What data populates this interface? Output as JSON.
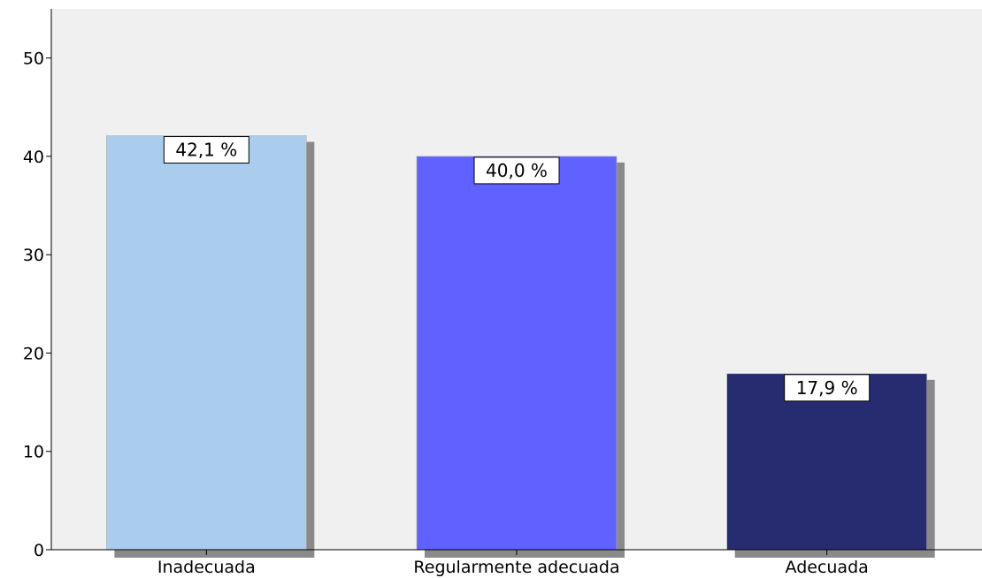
{
  "chart_data": {
    "type": "bar",
    "categories": [
      "Inadecuada",
      "Regularmente adecuada",
      "Adecuada"
    ],
    "values": [
      42.1,
      40.0,
      17.9
    ],
    "data_labels": [
      "42,1 %",
      "40,0 %",
      "17,9 %"
    ],
    "bar_colors": [
      "#aacdee",
      "#5f62ff",
      "#272b70"
    ],
    "shadow_color": "#8a8a8a",
    "background_color": "#f0f0f0",
    "ylim": [
      0,
      55
    ],
    "yticks": [
      0,
      10,
      20,
      30,
      40,
      50
    ],
    "ytick_labels": [
      "0",
      "10",
      "20",
      "30",
      "40",
      "50"
    ],
    "grid": false,
    "title": "",
    "xlabel": "",
    "ylabel": ""
  }
}
